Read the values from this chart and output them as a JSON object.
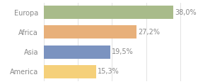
{
  "categories": [
    "Europa",
    "Africa",
    "Asia",
    "America"
  ],
  "values": [
    38.0,
    27.2,
    19.5,
    15.3
  ],
  "bar_colors": [
    "#a8bb8a",
    "#e8b07a",
    "#7b93c0",
    "#f5d07a"
  ],
  "xlim": [
    0,
    44
  ],
  "bar_height": 0.68,
  "background_color": "#ffffff",
  "text_color": "#888888",
  "label_fontsize": 7.0,
  "category_fontsize": 7.0,
  "grid_color": "#dddddd",
  "grid_linewidth": 0.6
}
